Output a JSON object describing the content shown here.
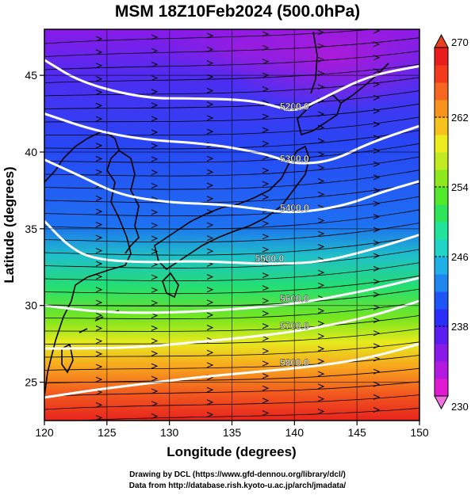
{
  "title": "MSM 18Z10Feb2024 (500.0hPa)",
  "x_axis": {
    "label": "Longitude (degrees)",
    "range": [
      120,
      150
    ],
    "ticks": [
      120,
      125,
      130,
      135,
      140,
      145,
      150
    ]
  },
  "y_axis": {
    "label": "Latitude  (degrees)",
    "range": [
      22.5,
      48
    ],
    "ticks": [
      25,
      30,
      35,
      40,
      45
    ]
  },
  "colorbar": {
    "range": [
      230,
      270
    ],
    "tick_labels": [
      230,
      238,
      246,
      254,
      262,
      270
    ],
    "colors": [
      "#e01ad0",
      "#b21ae0",
      "#8a1ae8",
      "#5a1ef0",
      "#2a2ef8",
      "#1f54f6",
      "#1f86f0",
      "#1fb0e8",
      "#1fd6c6",
      "#22e39a",
      "#2ee45a",
      "#54e82a",
      "#8ee81e",
      "#c2ea20",
      "#ecec20",
      "#f8c21e",
      "#f8941e",
      "#f66620",
      "#f23a1e",
      "#e81e1e"
    ]
  },
  "contours": [
    {
      "label": "5200.0",
      "points": [
        [
          120,
          46
        ],
        [
          123,
          44.5
        ],
        [
          128,
          43.5
        ],
        [
          132,
          43.5
        ],
        [
          136,
          43.4
        ],
        [
          138,
          43.1
        ],
        [
          140,
          42.6
        ],
        [
          142,
          43.4
        ],
        [
          146,
          45
        ],
        [
          150,
          45.6
        ]
      ]
    },
    {
      "label": "5300.0",
      "points": [
        [
          120,
          42.5
        ],
        [
          124,
          41.4
        ],
        [
          128,
          40.8
        ],
        [
          132,
          40.6
        ],
        [
          135,
          40.3
        ],
        [
          138,
          39.8
        ],
        [
          140,
          39.2
        ],
        [
          143,
          39.4
        ],
        [
          146,
          40.6
        ],
        [
          150,
          41.7
        ]
      ]
    },
    {
      "label": "5400.0",
      "points": [
        [
          120,
          39.5
        ],
        [
          123,
          38.4
        ],
        [
          126,
          37.2
        ],
        [
          130,
          36.7
        ],
        [
          134,
          36.6
        ],
        [
          137,
          36.3
        ],
        [
          140,
          36
        ],
        [
          144,
          36.5
        ],
        [
          147,
          37.4
        ],
        [
          150,
          38.1
        ]
      ]
    },
    {
      "label": "5500.0",
      "points": [
        [
          120,
          35.5
        ],
        [
          122,
          33.8
        ],
        [
          124,
          33
        ],
        [
          128,
          32.8
        ],
        [
          132,
          32.9
        ],
        [
          135,
          32.8
        ],
        [
          138,
          32.7
        ],
        [
          142,
          32.8
        ],
        [
          146,
          33.6
        ],
        [
          150,
          34.6
        ]
      ]
    },
    {
      "label": "5600.0",
      "points": [
        [
          120,
          30
        ],
        [
          124,
          29.6
        ],
        [
          128,
          29.5
        ],
        [
          132,
          29.6
        ],
        [
          136,
          29.8
        ],
        [
          140,
          30.1
        ],
        [
          144,
          30.7
        ],
        [
          147,
          31.2
        ],
        [
          150,
          31.8
        ]
      ]
    },
    {
      "label": "5700.0",
      "points": [
        [
          120,
          27.2
        ],
        [
          124,
          27.2
        ],
        [
          128,
          27.3
        ],
        [
          132,
          27.6
        ],
        [
          136,
          27.9
        ],
        [
          140,
          28.3
        ],
        [
          144,
          28.9
        ],
        [
          147,
          29.5
        ],
        [
          150,
          30.3
        ]
      ]
    },
    {
      "label": "5800.0",
      "points": [
        [
          120,
          24
        ],
        [
          124,
          24.5
        ],
        [
          128,
          24.9
        ],
        [
          132,
          25.3
        ],
        [
          136,
          25.6
        ],
        [
          140,
          25.9
        ],
        [
          144,
          26.3
        ],
        [
          147,
          26.8
        ],
        [
          150,
          27.5
        ]
      ]
    }
  ],
  "footer": {
    "line1": "Drawing by DCL (https://www.gfd-dennou.org/library/dcl/)",
    "line2": "Data from http://database.rish.kyoto-u.ac.jp/arch/jmadata/"
  }
}
